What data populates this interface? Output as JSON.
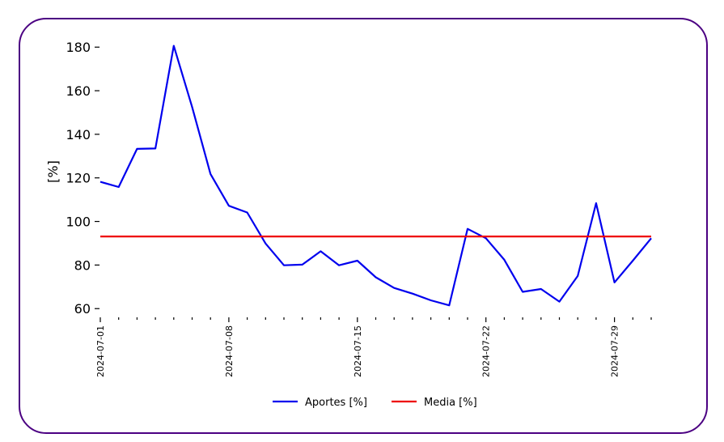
{
  "chart_data": {
    "type": "line",
    "ylabel": "[%]",
    "xlabel": "",
    "ylim": [
      56,
      189
    ],
    "yticks": [
      60,
      80,
      100,
      120,
      140,
      160,
      180
    ],
    "x": [
      "2024-07-01",
      "2024-07-02",
      "2024-07-03",
      "2024-07-04",
      "2024-07-05",
      "2024-07-06",
      "2024-07-07",
      "2024-07-08",
      "2024-07-09",
      "2024-07-10",
      "2024-07-11",
      "2024-07-12",
      "2024-07-13",
      "2024-07-14",
      "2024-07-15",
      "2024-07-16",
      "2024-07-17",
      "2024-07-18",
      "2024-07-19",
      "2024-07-20",
      "2024-07-21",
      "2024-07-22",
      "2024-07-23",
      "2024-07-24",
      "2024-07-25",
      "2024-07-26",
      "2024-07-27",
      "2024-07-28",
      "2024-07-29",
      "2024-07-30",
      "2024-07-31"
    ],
    "xtick_labels": [
      "2024-07-01",
      "2024-07-08",
      "2024-07-15",
      "2024-07-22",
      "2024-07-29"
    ],
    "series": [
      {
        "name": "Aportes [%]",
        "color": "#0000ee",
        "values": [
          118.2,
          115.8,
          133.3,
          133.5,
          180.6,
          152.5,
          121.8,
          107.2,
          104.1,
          89.9,
          79.9,
          80.2,
          86.3,
          79.9,
          82.0,
          74.4,
          69.5,
          66.9,
          63.8,
          61.5,
          96.6,
          92.3,
          82.4,
          67.7,
          69.0,
          63.2,
          75.0,
          108.4,
          72.0,
          82.0,
          92.3
        ]
      },
      {
        "name": "Media [%]",
        "color": "#ee0000",
        "values": [
          93.1,
          93.1,
          93.1,
          93.1,
          93.1,
          93.1,
          93.1,
          93.1,
          93.1,
          93.1,
          93.1,
          93.1,
          93.1,
          93.1,
          93.1,
          93.1,
          93.1,
          93.1,
          93.1,
          93.1,
          93.1,
          93.1,
          93.1,
          93.1,
          93.1,
          93.1,
          93.1,
          93.1,
          93.1,
          93.1,
          93.1
        ]
      }
    ],
    "grid": false,
    "legend_position": "bottom-center"
  }
}
